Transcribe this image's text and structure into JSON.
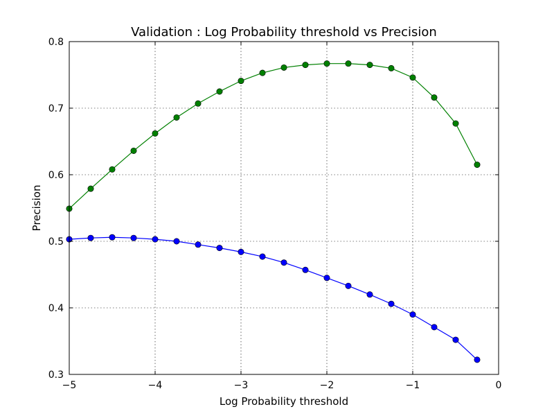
{
  "chart_data": {
    "type": "line",
    "title": "Validation : Log Probability threshold vs Precision",
    "xlabel": "Log Probability threshold",
    "ylabel": "Precision",
    "xlim": [
      -5,
      0
    ],
    "ylim": [
      0.3,
      0.8
    ],
    "grid": true,
    "xticks": [
      -5,
      -4,
      -3,
      -2,
      -1,
      0
    ],
    "xtick_labels": [
      "−5",
      "−4",
      "−3",
      "−2",
      "−1",
      "0"
    ],
    "yticks": [
      0.3,
      0.4,
      0.5,
      0.6,
      0.7,
      0.8
    ],
    "ytick_labels": [
      "0.3",
      "0.4",
      "0.5",
      "0.6",
      "0.7",
      "0.8"
    ],
    "x": [
      -5.0,
      -4.75,
      -4.5,
      -4.25,
      -4.0,
      -3.75,
      -3.5,
      -3.25,
      -3.0,
      -2.75,
      -2.5,
      -2.25,
      -2.0,
      -1.75,
      -1.5,
      -1.25,
      -1.0,
      -0.75,
      -0.5,
      -0.25
    ],
    "series": [
      {
        "name": "series-green",
        "color": "#008000",
        "values": [
          0.549,
          0.579,
          0.608,
          0.636,
          0.662,
          0.686,
          0.707,
          0.725,
          0.741,
          0.753,
          0.761,
          0.765,
          0.767,
          0.767,
          0.765,
          0.76,
          0.746,
          0.716,
          0.677,
          0.615
        ]
      },
      {
        "name": "series-blue",
        "color": "#0000ff",
        "values": [
          0.503,
          0.505,
          0.506,
          0.505,
          0.503,
          0.5,
          0.495,
          0.49,
          0.484,
          0.477,
          0.468,
          0.457,
          0.445,
          0.433,
          0.42,
          0.406,
          0.39,
          0.371,
          0.352,
          0.322
        ]
      }
    ]
  }
}
